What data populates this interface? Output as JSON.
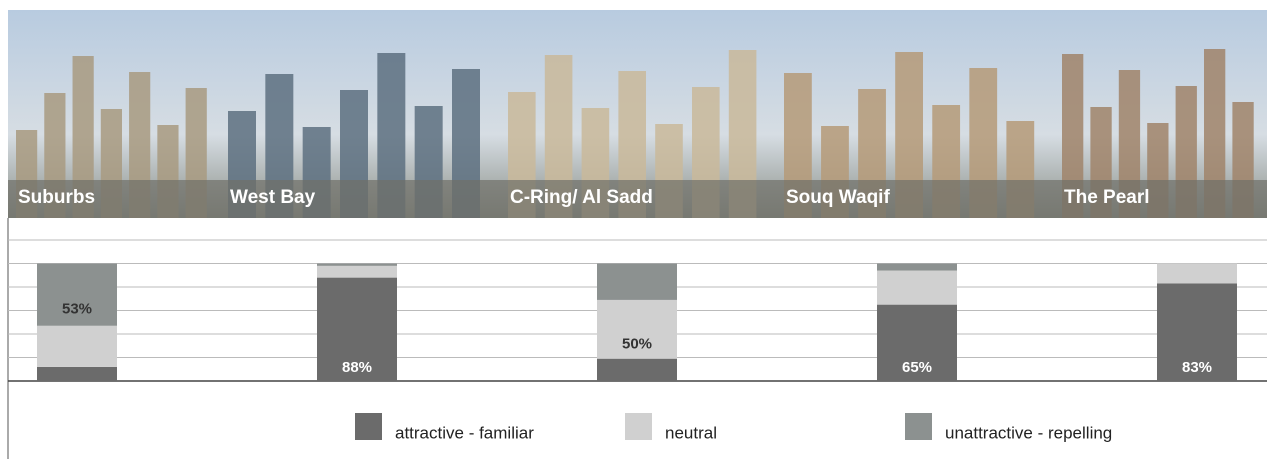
{
  "chart_data": {
    "type": "stacked_bar",
    "categories": [
      "Suburbs",
      "West Bay",
      "C-Ring/ Al Sadd",
      "Souq Waqif",
      "The Pearl"
    ],
    "series": [
      {
        "name": "attractive - familiar",
        "color": "#6b6b6b",
        "values": [
          12,
          88,
          19,
          65,
          83
        ],
        "value_labels": [
          null,
          "88%",
          null,
          "65%",
          "83%"
        ]
      },
      {
        "name": "neutral",
        "color": "#d0d0d0",
        "values": [
          35,
          10,
          50,
          29,
          17
        ],
        "value_labels": [
          null,
          null,
          "50%",
          null,
          null
        ]
      },
      {
        "name": "unattractive - repelling",
        "color": "#8c9190",
        "values": [
          53,
          2,
          31,
          6,
          0
        ],
        "value_labels": [
          "53%",
          null,
          null,
          null,
          null
        ]
      }
    ],
    "ylim": [
      0,
      120
    ],
    "yticks": [
      0,
      20,
      40,
      60,
      80,
      100,
      120
    ],
    "grid": true,
    "legend": "bottom"
  }
}
